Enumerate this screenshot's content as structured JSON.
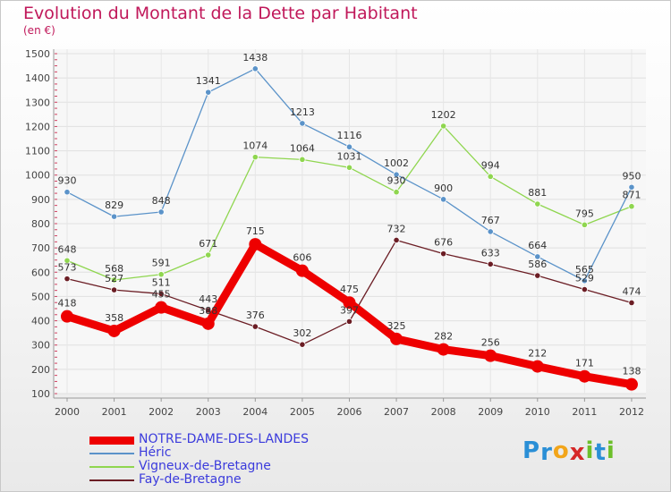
{
  "title": "Evolution du Montant de la Dette par Habitant",
  "subtitle": "(en €)",
  "brand": {
    "text": "Proxiti",
    "letters": [
      "P",
      "r",
      "o",
      "x",
      "i",
      "t",
      "i"
    ],
    "colors": [
      "#2a8fd6",
      "#2a8fd6",
      "#f2a51a",
      "#d62828",
      "#6cbf2a",
      "#2a8fd6",
      "#6cbf2a"
    ]
  },
  "chart_data": {
    "type": "line",
    "title": "Evolution du Montant de la Dette par Habitant",
    "ylabel": "(en €)",
    "x": [
      "2000",
      "2001",
      "2002",
      "2003",
      "2004",
      "2005",
      "2006",
      "2007",
      "2008",
      "2009",
      "2010",
      "2011",
      "2012"
    ],
    "ylim": [
      100,
      1500
    ],
    "yticks": [
      100,
      200,
      300,
      400,
      500,
      600,
      700,
      800,
      900,
      1000,
      1100,
      1200,
      1300,
      1400,
      1500
    ],
    "grid": true,
    "legend": "bottom-left",
    "series": [
      {
        "name": "NOTRE-DAME-DES-LANDES",
        "color": "#ee0000",
        "values": [
          418,
          358,
          455,
          388,
          715,
          606,
          475,
          325,
          282,
          256,
          212,
          171,
          138
        ]
      },
      {
        "name": "Héric",
        "color": "#5b93c9",
        "values": [
          930,
          829,
          848,
          1341,
          1438,
          1213,
          1116,
          1002,
          900,
          767,
          664,
          565,
          950
        ]
      },
      {
        "name": "Vigneux-de-Bretagne",
        "color": "#8fd64f",
        "values": [
          648,
          568,
          591,
          671,
          1074,
          1064,
          1031,
          930,
          1202,
          994,
          881,
          795,
          871
        ]
      },
      {
        "name": "Fay-de-Bretagne",
        "color": "#6b1d24",
        "values": [
          573,
          527,
          511,
          443,
          376,
          302,
          397,
          732,
          676,
          633,
          586,
          529,
          474
        ]
      }
    ],
    "value_labels": [
      [
        "418",
        "358",
        "455",
        "388",
        "715",
        "606",
        "475",
        "325",
        "282",
        "256",
        "212",
        "171",
        "138"
      ],
      [
        "930",
        "829",
        "848",
        "1341",
        "1438",
        "1213",
        "1116",
        "1002",
        "900",
        "767",
        "664",
        "565",
        "950"
      ],
      [
        "648",
        "568",
        "591",
        "671",
        "1074",
        "1064",
        "1031",
        "930",
        "1202",
        "994",
        "881",
        "795",
        "871"
      ],
      [
        "573",
        "527",
        "511",
        "443",
        "376",
        "302",
        "397",
        "732",
        "676",
        "633",
        "586",
        "529",
        "474"
      ]
    ]
  }
}
